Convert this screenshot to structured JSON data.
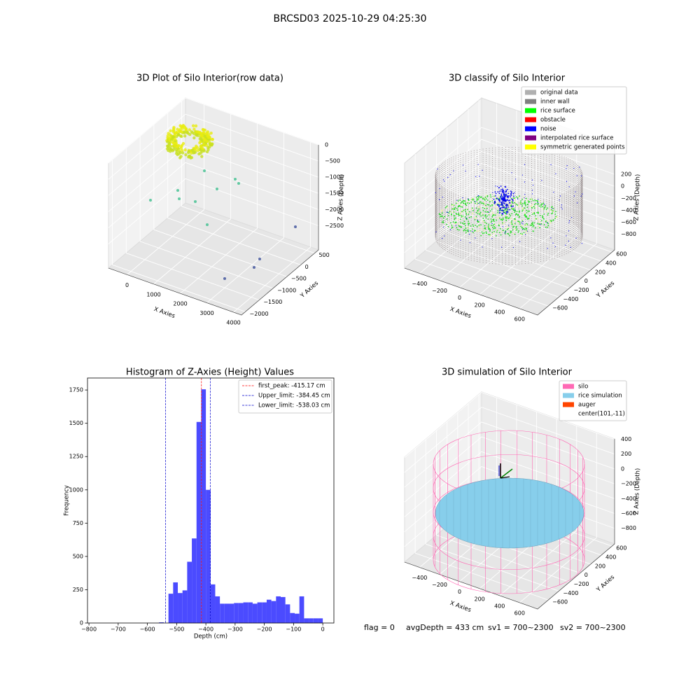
{
  "title": "BRCSD03 2025-10-29 04:25:30",
  "footer": [
    "flag = 0",
    "avgDepth = 433 cm",
    "sv1 = 700~2300",
    "sv2 = 700~2300"
  ],
  "chart_data": [
    {
      "type": "scatter3d",
      "title": "3D Plot of Silo Interior(row data)",
      "xlabel": "X Axies",
      "ylabel": "Y Axies",
      "zlabel": "Z Axies (Depth)",
      "xlim": [
        -700,
        4300
      ],
      "xticks": [
        0,
        1000,
        2000,
        3000,
        4000
      ],
      "ylim": [
        -2140,
        640
      ],
      "yticks": [
        {
          "value": -2000,
          "label": "−2000"
        },
        {
          "value": -1500,
          "label": "−1500"
        },
        {
          "value": -1000,
          "label": "−1000"
        },
        {
          "value": -500,
          "label": "−500"
        },
        0,
        500
      ],
      "zlim": [
        -3250,
        0
      ],
      "zticks": [
        {
          "value": -2500,
          "label": "−2500"
        },
        {
          "value": -2000,
          "label": "−2000"
        },
        {
          "value": -1500,
          "label": "−1500"
        },
        {
          "value": -1000,
          "label": "−1000"
        },
        {
          "value": -500,
          "label": "−500"
        },
        0
      ]
    },
    {
      "type": "scatter3d",
      "title": "3D classify of Silo Interior",
      "xlabel": "X Axies",
      "ylabel": "Y Axies",
      "zlabel": "Z Axies (Depth)",
      "xlim": [
        -550,
        780
      ],
      "xticks": [
        {
          "value": -400,
          "label": "−400"
        },
        {
          "value": -200,
          "label": "−200"
        },
        0,
        200,
        400,
        600
      ],
      "ylim": [
        -800,
        650
      ],
      "yticks": [
        {
          "value": -600,
          "label": "−600"
        },
        {
          "value": -400,
          "label": "−400"
        },
        {
          "value": -200,
          "label": "−200"
        },
        0,
        200,
        400,
        600
      ],
      "zlim": [
        -1060,
        690
      ],
      "zticks": [
        {
          "value": -800,
          "label": "−800"
        },
        {
          "value": -600,
          "label": "−600"
        },
        {
          "value": -400,
          "label": "−400"
        },
        {
          "value": -200,
          "label": "−200"
        },
        0,
        200
      ],
      "legend": "upper right",
      "series": [
        {
          "name": "original data",
          "color": "#b0b0b0"
        },
        {
          "name": "inner wall",
          "color": "#808080"
        },
        {
          "name": "rice surface",
          "color": "#00ff00"
        },
        {
          "name": "obstacle",
          "color": "#ff0000"
        },
        {
          "name": "noise",
          "color": "#0000ff"
        },
        {
          "name": "interpolated rice surface",
          "color": "#800080"
        },
        {
          "name": "symmetric generated points",
          "color": "#ffff00"
        }
      ]
    },
    {
      "type": "histogram",
      "title": "Histogram of Z-Axies (Height) Values",
      "xlabel": "Depth (cm)",
      "ylabel": "Frequency",
      "color": "#4b4bff",
      "bins": [
        -560,
        -544,
        -528,
        -512,
        -496,
        -480,
        -464,
        -448,
        -432,
        -416,
        -400,
        -384,
        -368,
        -352,
        -336,
        -320,
        -304,
        -288,
        -272,
        -256,
        -240,
        -224,
        -208,
        -192,
        -176,
        -160,
        -144,
        -128,
        -112,
        -96,
        -80,
        -64,
        -48,
        -32,
        -16,
        0
      ],
      "counts": [
        5,
        0,
        220,
        305,
        225,
        245,
        460,
        635,
        1510,
        1755,
        1000,
        290,
        200,
        145,
        145,
        145,
        150,
        150,
        155,
        155,
        145,
        155,
        155,
        175,
        165,
        200,
        195,
        140,
        75,
        70,
        200,
        35,
        35,
        35,
        35
      ],
      "xlim": [
        -805,
        38
      ],
      "xticks": [
        {
          "value": -800,
          "label": "−800"
        },
        {
          "value": -700,
          "label": "−700"
        },
        {
          "value": -600,
          "label": "−600"
        },
        {
          "value": -500,
          "label": "−500"
        },
        {
          "value": -400,
          "label": "−400"
        },
        {
          "value": -300,
          "label": "−300"
        },
        {
          "value": -200,
          "label": "−200"
        },
        {
          "value": -100,
          "label": "−100"
        },
        0
      ],
      "ylim": [
        0,
        1840
      ],
      "yticks": [
        0,
        250,
        500,
        750,
        1000,
        1250,
        1500,
        1750
      ],
      "legend": "upper right",
      "lines": [
        {
          "value": -415.17,
          "label": "first_peak: -415.17 cm",
          "color": "#ff0000"
        },
        {
          "value": -384.45,
          "label": "Upper_limit: -384.45 cm",
          "color": "#0000cc"
        },
        {
          "value": -538.03,
          "label": "Lower_limit: -538.03 cm",
          "color": "#0000cc"
        }
      ]
    },
    {
      "type": "surface3d",
      "title": "3D simulation of Silo Interior",
      "xlabel": "X Axies",
      "ylabel": "Y Axies",
      "zlabel": "Z Axies (Depth)",
      "xlim": [
        -550,
        780
      ],
      "xticks": [
        {
          "value": -400,
          "label": "−400"
        },
        {
          "value": -200,
          "label": "−200"
        },
        0,
        200,
        400,
        600
      ],
      "ylim": [
        -800,
        650
      ],
      "yticks": [
        {
          "value": -600,
          "label": "−600"
        },
        {
          "value": -400,
          "label": "−400"
        },
        {
          "value": -200,
          "label": "−200"
        },
        0,
        200,
        400,
        600
      ],
      "zlim": [
        -1010,
        405
      ],
      "zticks": [
        {
          "value": -800,
          "label": "−800"
        },
        {
          "value": -600,
          "label": "−600"
        },
        {
          "value": -400,
          "label": "−400"
        },
        {
          "value": -200,
          "label": "−200"
        },
        0,
        200,
        400
      ],
      "legend": "upper right",
      "series": [
        {
          "name": "silo",
          "color": "#ff69b4"
        },
        {
          "name": "rice simulation",
          "color": "#87ceeb"
        },
        {
          "name": "auger",
          "color": "#ff4500"
        },
        {
          "name": "center(101,-11)"
        }
      ]
    }
  ]
}
